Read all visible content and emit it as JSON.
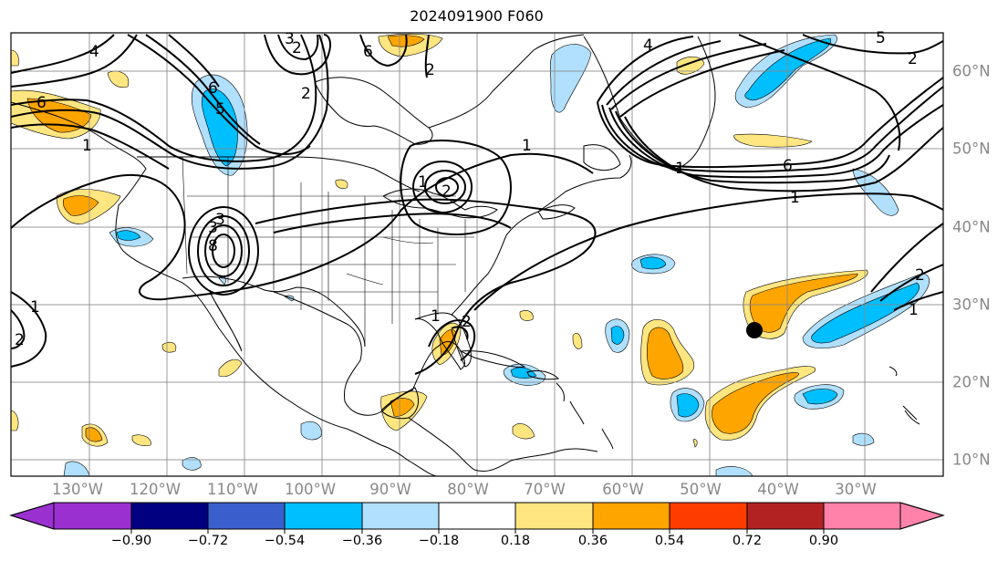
{
  "title": "2024091900 F060",
  "longitude_labels": [
    "130°W",
    "120°W",
    "110°W",
    "100°W",
    "90°W",
    "80°W",
    "70°W",
    "60°W",
    "50°W",
    "40°W",
    "30°W"
  ],
  "latitude_labels": [
    "60°N",
    "50°N",
    "40°N",
    "30°N",
    "20°N",
    "10°N"
  ],
  "colorbar": {
    "ticks": [
      "−0.90",
      "−0.72",
      "−0.54",
      "−0.36",
      "−0.18",
      "0.18",
      "0.36",
      "0.54",
      "0.72",
      "0.90"
    ],
    "colors": [
      "#9b30d0",
      "#000080",
      "#3a5fcd",
      "#00bfff",
      "#b0e0fe",
      "#ffffff",
      "#ffe680",
      "#ffa500",
      "#ff3c00",
      "#b22222",
      "#ff82ab"
    ]
  },
  "contour_labels": [
    "2",
    "4",
    "6",
    "3",
    "2",
    "6",
    "5",
    "6",
    "2",
    "1",
    "1",
    "2",
    "4",
    "1",
    "6",
    "1",
    "5",
    "2",
    "1",
    "3",
    "8",
    "3",
    "1",
    "2",
    "1",
    "2",
    "1",
    "2"
  ],
  "storm_marker": {
    "lon": "45°W",
    "lat": "27°N"
  }
}
